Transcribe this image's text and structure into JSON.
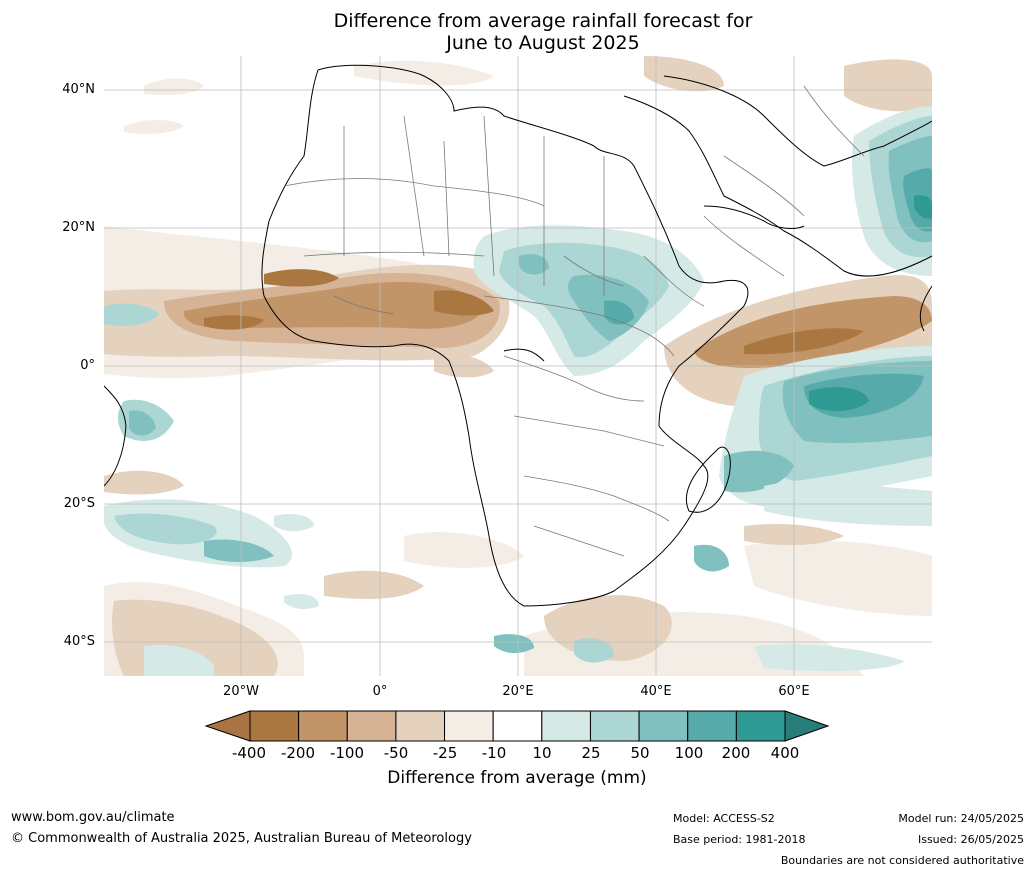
{
  "title_line1": "Difference from average rainfall forecast for",
  "title_line2": "June to August 2025",
  "lat_labels": [
    "40°N",
    "20°N",
    "0°",
    "20°S",
    "40°S"
  ],
  "lon_labels": [
    "20°W",
    "0°",
    "20°E",
    "40°E",
    "60°E"
  ],
  "colorbar": {
    "ticks": [
      "-400",
      "-200",
      "-100",
      "-50",
      "-25",
      "-10",
      "10",
      "25",
      "50",
      "100",
      "200",
      "400"
    ],
    "colors": [
      "#a87442",
      "#ab7741",
      "#c29568",
      "#d5b394",
      "#e4d1be",
      "#f3ede6",
      "#ffffff",
      "#d5e9e6",
      "#abd6d3",
      "#80c1bf",
      "#56abaa",
      "#2f9a94",
      "#267d79"
    ],
    "label": "Difference from average (mm)"
  },
  "footer": {
    "website": "www.bom.gov.au/climate",
    "copyright": "© Commonwealth of Australia 2025, Australian Bureau of Meteorology",
    "model": "Model: ACCESS-S2",
    "base_period": "Base period: 1981-2018",
    "model_run": "Model run: 24/05/2025",
    "issued": "Issued: 26/05/2025",
    "disclaimer": "Boundaries are not considered authoritative"
  }
}
